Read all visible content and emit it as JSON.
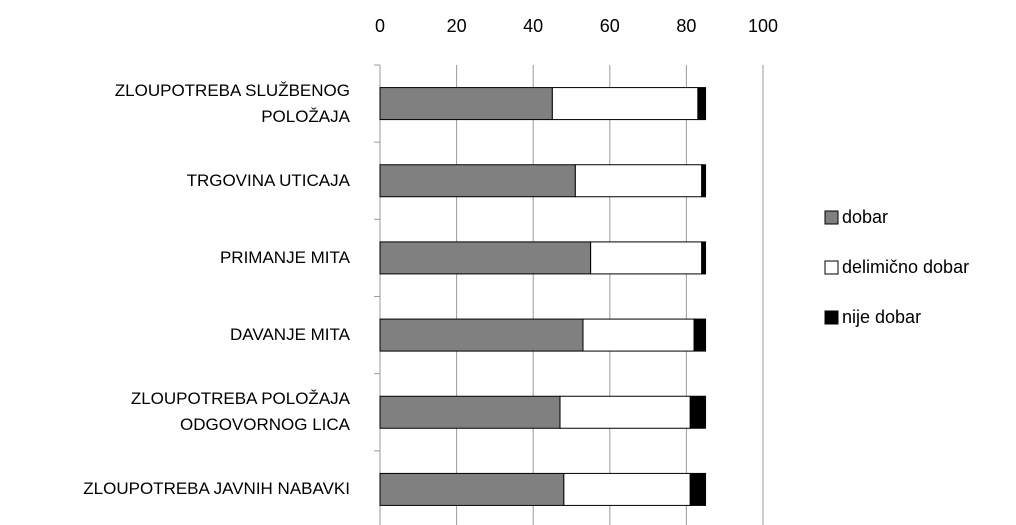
{
  "chart_data": {
    "type": "stacked_barh",
    "categories": [
      "ZLOUPOTREBA SLUŽBENOG\nPOLOŽAJA",
      "TRGOVINA UTICAJA",
      "PRIMANJE MITA",
      "DAVANJE MITA",
      "ZLOUPOTREBA POLOŽAJA\nODGOVORNOG LICA",
      "ZLOUPOTREBA JAVNIH NABAVKI"
    ],
    "series": [
      {
        "name": "dobar",
        "color": "#808080",
        "values": [
          45,
          51,
          55,
          53,
          47,
          48
        ]
      },
      {
        "name": "delimično dobar",
        "color": "#ffffff",
        "values": [
          38,
          33,
          29,
          29,
          34,
          33
        ]
      },
      {
        "name": "nije dobar",
        "color": "#000000",
        "values": [
          2,
          1,
          1,
          3,
          4,
          4
        ]
      }
    ],
    "xlim": [
      0,
      100
    ],
    "xticks": [
      0,
      20,
      40,
      60,
      80,
      100
    ],
    "grid": true,
    "legend": "right"
  }
}
